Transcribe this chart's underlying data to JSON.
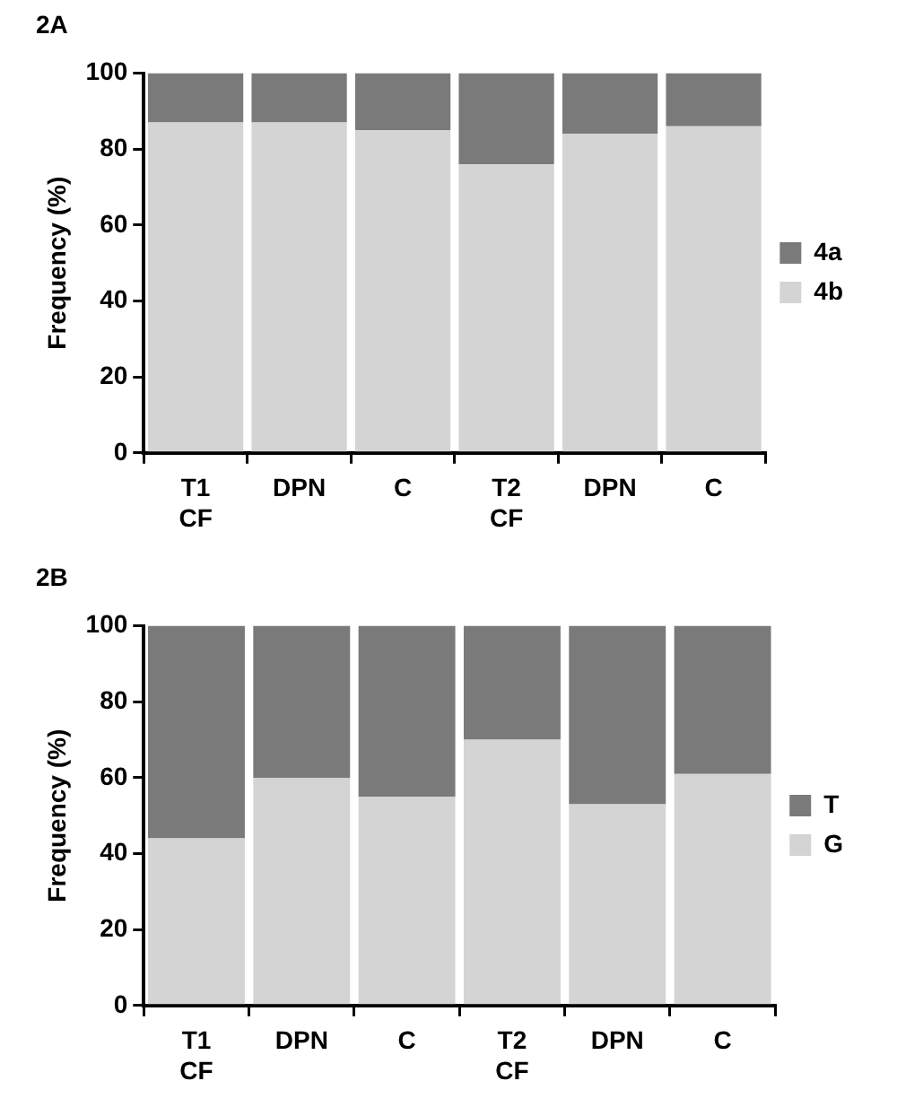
{
  "chart_data": [
    {
      "type": "bar",
      "title": "2A",
      "ylabel": "Frequency (%)",
      "categories": [
        "T1\nCF",
        "DPN",
        "C",
        "T2\nCF",
        "DPN",
        "C"
      ],
      "stacked": true,
      "ylim": [
        0,
        100
      ],
      "yticks": [
        0,
        20,
        40,
        60,
        80,
        100
      ],
      "grid": false,
      "legend": "right",
      "series": [
        {
          "name": "4b",
          "color": "#d4d4d4",
          "values": [
            87,
            87,
            85,
            76,
            84,
            86
          ]
        },
        {
          "name": "4a",
          "color": "#7a7a7a",
          "values": [
            13,
            13,
            15,
            24,
            16,
            14
          ]
        }
      ]
    },
    {
      "type": "bar",
      "title": "2B",
      "ylabel": "Frequency (%)",
      "categories": [
        "T1\nCF",
        "DPN",
        "C",
        "T2\nCF",
        "DPN",
        "C"
      ],
      "stacked": true,
      "ylim": [
        0,
        100
      ],
      "yticks": [
        0,
        20,
        40,
        60,
        80,
        100
      ],
      "grid": false,
      "legend": "right",
      "series": [
        {
          "name": "G",
          "color": "#d4d4d4",
          "values": [
            44,
            60,
            55,
            70,
            53,
            61
          ]
        },
        {
          "name": "T",
          "color": "#7a7a7a",
          "values": [
            56,
            40,
            45,
            30,
            47,
            39
          ]
        }
      ]
    }
  ]
}
